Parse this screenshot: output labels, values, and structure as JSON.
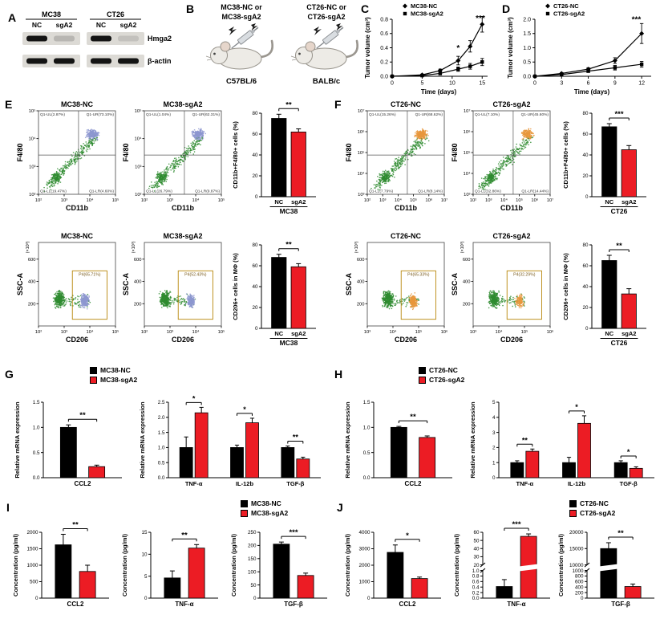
{
  "colors": {
    "nc": "#000000",
    "sg": "#ec1c24",
    "flow_main": "#2e8b2f",
    "flow_accent_blue": "#8d96d0",
    "flow_accent_orange": "#e8973c",
    "gate_box": "#b8860b"
  },
  "panel_letters": {
    "a": "A",
    "b": "B",
    "c": "C",
    "d": "D",
    "e": "E",
    "f": "F",
    "g": "G",
    "h": "H",
    "i": "I",
    "j": "J"
  },
  "panel_a": {
    "row_labels": [
      "Hmga2",
      "β-actin"
    ],
    "groups": [
      {
        "name": "MC38",
        "lanes": [
          "NC",
          "sgA2"
        ],
        "hmga2": [
          1.0,
          0.18
        ],
        "actin": [
          1.0,
          1.0
        ]
      },
      {
        "name": "CT26",
        "lanes": [
          "NC",
          "sgA2"
        ],
        "hmga2": [
          1.0,
          0.12
        ],
        "actin": [
          1.0,
          1.0
        ]
      }
    ]
  },
  "panel_b": {
    "arms": [
      {
        "line1": "MC38-NC or",
        "line2": "MC38-sgA2",
        "strain": "C57BL/6"
      },
      {
        "line1": "CT26-NC or",
        "line2": "CT26-sgA2",
        "strain": "BALB/c"
      }
    ]
  },
  "legends": {
    "g": [
      "MC38-NC",
      "MC38-sgA2"
    ],
    "h": [
      "CT26-NC",
      "CT26-sgA2"
    ],
    "i": [
      "MC38-NC",
      "MC38-sgA2"
    ],
    "j": [
      "CT26-NC",
      "CT26-sgA2"
    ]
  },
  "chart_data": [
    {
      "id": "C",
      "type": "line",
      "xlabel": "Time (days)",
      "ylabel": "Tumor volume (cm³)",
      "xlim": [
        0,
        15.5
      ],
      "ylim": [
        0,
        0.8
      ],
      "xticks": [
        0,
        5,
        10,
        15
      ],
      "yticks": [
        0,
        0.2,
        0.4,
        0.6,
        0.8
      ],
      "ytick_labels": [
        "0.0",
        "0.2",
        "0.4",
        "0.6",
        "0.8"
      ],
      "x": [
        0,
        5,
        8,
        11,
        13,
        15
      ],
      "series": [
        {
          "name": "MC38-NC",
          "marker": "diamond",
          "values": [
            0,
            0.02,
            0.08,
            0.22,
            0.42,
            0.73
          ],
          "errors": [
            0,
            0.01,
            0.02,
            0.06,
            0.08,
            0.11
          ]
        },
        {
          "name": "MC38-sgA2",
          "marker": "square",
          "values": [
            0,
            0.01,
            0.04,
            0.1,
            0.14,
            0.2
          ],
          "errors": [
            0,
            0.01,
            0.02,
            0.03,
            0.04,
            0.05
          ]
        }
      ],
      "annotations": [
        {
          "x": 11,
          "y": 0.36,
          "text": "*"
        },
        {
          "x": 14.7,
          "y": 0.78,
          "text": "***"
        }
      ]
    },
    {
      "id": "D",
      "type": "line",
      "xlabel": "Time (days)",
      "ylabel": "Tumor volume (cm³)",
      "xlim": [
        0,
        12.8
      ],
      "ylim": [
        0,
        2
      ],
      "xticks": [
        0,
        3,
        6,
        9,
        12
      ],
      "yticks": [
        0,
        0.5,
        1,
        1.5,
        2
      ],
      "ytick_labels": [
        "0.0",
        "0.5",
        "1.0",
        "1.5",
        "2.0"
      ],
      "x": [
        0,
        3,
        6,
        9,
        12
      ],
      "series": [
        {
          "name": "CT26-NC",
          "marker": "diamond",
          "values": [
            0,
            0.1,
            0.25,
            0.55,
            1.5
          ],
          "errors": [
            0,
            0.03,
            0.05,
            0.1,
            0.35
          ]
        },
        {
          "name": "CT26-sgA2",
          "marker": "square",
          "values": [
            0,
            0.06,
            0.18,
            0.3,
            0.42
          ],
          "errors": [
            0,
            0.02,
            0.04,
            0.08,
            0.1
          ]
        }
      ],
      "annotations": [
        {
          "x": 11.4,
          "y": 1.9,
          "text": "***"
        }
      ]
    },
    {
      "id": "E-flow-1",
      "type": "flow",
      "mode": "quad",
      "accent": "blue",
      "title": "MC38-NC",
      "xlabel": "CD11b",
      "ylabel": "F4/80",
      "xticks": [
        "10²",
        "10³",
        "10⁴",
        "10⁵"
      ],
      "yticks": [
        "10²",
        "10³",
        "10⁴",
        "10⁵"
      ],
      "quads": {
        "ul": "Q1-UL(2.87%)",
        "ur": "Q1-UR(73.10%)",
        "ll": "Q1-LL(19.47%)",
        "lr": "Q1-LR(4.60%)"
      }
    },
    {
      "id": "E-flow-2",
      "type": "flow",
      "mode": "quad",
      "accent": "blue",
      "title": "MC38-sgA2",
      "xlabel": "CD11b",
      "ylabel": "F4/80",
      "xticks": [
        "10²",
        "10³",
        "10⁴",
        "10⁵"
      ],
      "yticks": [
        "10²",
        "10³",
        "10⁴",
        "10⁵"
      ],
      "quads": {
        "ul": "Q1-UL(1.04%)",
        "ur": "Q1-UR(62.31%)",
        "ll": "Q1-LL(26.79%)",
        "lr": "Q1-LR(9.87%)"
      }
    },
    {
      "id": "E-bar-1",
      "type": "pairbar",
      "ylabel": "CD11b+F4/80+ cells (%)",
      "ylim": [
        0,
        80
      ],
      "yticks": [
        0,
        20,
        40,
        60,
        80
      ],
      "bars": [
        {
          "label": "NC",
          "value": 75,
          "error": 4,
          "color": "nc"
        },
        {
          "label": "sgA2",
          "value": 62,
          "error": 3,
          "color": "sg"
        }
      ],
      "sig": "**",
      "group_label": "MC38"
    },
    {
      "id": "E-flow-3",
      "type": "flow",
      "mode": "gate",
      "accent": "blue",
      "title": "MC38-NC",
      "xlabel": "CD206",
      "ylabel": "SSC-A",
      "y_unit": "(×10³)",
      "xticks": [
        "10²",
        "10³",
        "10⁴",
        "10⁵"
      ],
      "yticks": [
        200,
        400,
        600
      ],
      "gate": "P4(65.71%)"
    },
    {
      "id": "E-flow-4",
      "type": "flow",
      "mode": "gate",
      "accent": "blue",
      "title": "MC38-sgA2",
      "xlabel": "CD206",
      "ylabel": "SSC-A",
      "y_unit": "(×10³)",
      "xticks": [
        "10²",
        "10³",
        "10⁴",
        "10⁵"
      ],
      "yticks": [
        200,
        400,
        600
      ],
      "gate": "P4(52.43%)"
    },
    {
      "id": "E-bar-2",
      "type": "pairbar",
      "ylabel": "CD206+ cells in MΦ (%)",
      "ylim": [
        0,
        80
      ],
      "yticks": [
        0,
        20,
        40,
        60,
        80
      ],
      "bars": [
        {
          "label": "NC",
          "value": 68,
          "error": 3,
          "color": "nc"
        },
        {
          "label": "sgA2",
          "value": 59,
          "error": 3,
          "color": "sg"
        }
      ],
      "sig": "**",
      "group_label": "MC38"
    },
    {
      "id": "F-flow-1",
      "type": "flow",
      "mode": "quad",
      "accent": "orange",
      "title": "CT26-NC",
      "xlabel": "CD11b",
      "ylabel": "F4/80",
      "xticks": [
        "10²",
        "10³",
        "10⁴",
        "10⁵",
        "10⁶",
        "10⁷"
      ],
      "yticks": [
        "10³",
        "10⁴",
        "10⁵",
        "10⁶",
        "10⁷"
      ],
      "quads": {
        "ul": "Q1-UL(15.26%)",
        "ur": "Q1-UR(68.62%)",
        "ll": "Q1-LL(7.79%)",
        "lr": "Q1-LR(8.14%)"
      }
    },
    {
      "id": "F-flow-2",
      "type": "flow",
      "mode": "quad",
      "accent": "orange",
      "title": "CT26-sgA2",
      "xlabel": "CD11b",
      "ylabel": "F4/80",
      "xticks": [
        "10²",
        "10³",
        "10⁴",
        "10⁵",
        "10⁶",
        "10⁷"
      ],
      "yticks": [
        "10³",
        "10⁴",
        "10⁵",
        "10⁶",
        "10⁷"
      ],
      "quads": {
        "ul": "Q1-UL(7.10%)",
        "ur": "Q1-UR(45.60%)",
        "ll": "Q1-LL(32.86%)",
        "lr": "Q1-LR(14.44%)"
      }
    },
    {
      "id": "F-bar-1",
      "type": "pairbar",
      "ylabel": "CD11b+F4/80+ cells (%)",
      "ylim": [
        0,
        80
      ],
      "yticks": [
        0,
        20,
        40,
        60,
        80
      ],
      "bars": [
        {
          "label": "NC",
          "value": 67,
          "error": 3,
          "color": "nc"
        },
        {
          "label": "sgA2",
          "value": 45,
          "error": 4,
          "color": "sg"
        }
      ],
      "sig": "***",
      "group_label": "CT26"
    },
    {
      "id": "F-flow-3",
      "type": "flow",
      "mode": "gate",
      "accent": "orange",
      "title": "CT26-NC",
      "xlabel": "CD206",
      "ylabel": "SSC-A",
      "y_unit": "(×10³)",
      "xticks": [
        "10³",
        "10⁴",
        "10⁵",
        "10⁶"
      ],
      "yticks": [
        200,
        400,
        600
      ],
      "gate": "P4(65.33%)"
    },
    {
      "id": "F-flow-4",
      "type": "flow",
      "mode": "gate",
      "accent": "orange",
      "title": "CT26-sgA2",
      "xlabel": "CD206",
      "ylabel": "SSC-A",
      "y_unit": "(×10³)",
      "xticks": [
        "10³",
        "10⁴",
        "10⁵",
        "10⁶"
      ],
      "yticks": [
        200,
        400,
        600
      ],
      "gate": "P4(32.29%)"
    },
    {
      "id": "F-bar-2",
      "type": "pairbar",
      "ylabel": "CD206+ cells in MΦ (%)",
      "ylim": [
        0,
        80
      ],
      "yticks": [
        0,
        20,
        40,
        60,
        80
      ],
      "bars": [
        {
          "label": "NC",
          "value": 65,
          "error": 5,
          "color": "nc"
        },
        {
          "label": "sgA2",
          "value": 33,
          "error": 5,
          "color": "sg"
        }
      ],
      "sig": "**",
      "group_label": "CT26"
    },
    {
      "id": "G-ccl2",
      "type": "pairbar",
      "ylabel": "Relative mRNA expression",
      "ylim": [
        0,
        1.5
      ],
      "yticks": [
        0,
        0.5,
        1,
        1.5
      ],
      "ytick_labels": [
        "0.0",
        "0.5",
        "1.0",
        "1.5"
      ],
      "bars": [
        {
          "value": 1.0,
          "error": 0.05,
          "color": "nc"
        },
        {
          "value": 0.22,
          "error": 0.03,
          "color": "sg"
        }
      ],
      "sig": "**",
      "group_label": "CCL2"
    },
    {
      "id": "G-cyt",
      "type": "groupbar",
      "ylabel": "Relative mRNA expression",
      "ylim": [
        0,
        2.5
      ],
      "yticks": [
        0,
        0.5,
        1,
        1.5,
        2,
        2.5
      ],
      "ytick_labels": [
        "0.0",
        "0.5",
        "1.0",
        "1.5",
        "2.0",
        "2.5"
      ],
      "categories": [
        "TNF-α",
        "IL-12b",
        "TGF-β"
      ],
      "series": [
        {
          "color": "nc",
          "values": [
            1.0,
            1.0,
            1.0
          ],
          "errors": [
            0.35,
            0.08,
            0.05
          ]
        },
        {
          "color": "sg",
          "values": [
            2.15,
            1.82,
            0.62
          ],
          "errors": [
            0.18,
            0.15,
            0.06
          ]
        }
      ],
      "sigs": [
        "*",
        "*",
        "**"
      ]
    },
    {
      "id": "H-ccl2",
      "type": "pairbar",
      "ylabel": "Relative mRNA expression",
      "ylim": [
        0,
        1.5
      ],
      "yticks": [
        0,
        0.5,
        1,
        1.5
      ],
      "ytick_labels": [
        "0.0",
        "0.5",
        "1.0",
        "1.5"
      ],
      "bars": [
        {
          "value": 1.0,
          "error": 0.02,
          "color": "nc"
        },
        {
          "value": 0.8,
          "error": 0.03,
          "color": "sg"
        }
      ],
      "sig": "**",
      "group_label": "CCL2"
    },
    {
      "id": "H-cyt",
      "type": "groupbar",
      "ylabel": "Relative mRNA expression",
      "ylim": [
        0,
        5
      ],
      "yticks": [
        0,
        1,
        2,
        3,
        4,
        5
      ],
      "categories": [
        "TNF-α",
        "IL-12b",
        "TGF-β"
      ],
      "series": [
        {
          "color": "nc",
          "values": [
            1.0,
            1.0,
            1.0
          ],
          "errors": [
            0.12,
            0.35,
            0.12
          ]
        },
        {
          "color": "sg",
          "values": [
            1.75,
            3.6,
            0.62
          ],
          "errors": [
            0.15,
            0.5,
            0.1
          ]
        }
      ],
      "sigs": [
        "**",
        "*",
        "*"
      ]
    },
    {
      "id": "I-ccl2",
      "type": "pairbar",
      "ylabel": "Concentration (pg/ml)",
      "ylim": [
        0,
        2000
      ],
      "yticks": [
        0,
        500,
        1000,
        1500,
        2000
      ],
      "bars": [
        {
          "value": 1620,
          "error": 320,
          "color": "nc"
        },
        {
          "value": 810,
          "error": 190,
          "color": "sg"
        }
      ],
      "sig": "**",
      "group_label": "CCL2"
    },
    {
      "id": "I-tnf",
      "type": "pairbar",
      "ylabel": "Concentration (pg/ml)",
      "ylim": [
        0,
        15
      ],
      "yticks": [
        0,
        5,
        10,
        15
      ],
      "bars": [
        {
          "value": 4.6,
          "error": 1.6,
          "color": "nc"
        },
        {
          "value": 11.4,
          "error": 0.8,
          "color": "sg"
        }
      ],
      "sig": "**",
      "group_label": "TNF-α"
    },
    {
      "id": "I-tgf",
      "type": "pairbar",
      "ylabel": "Concentration (pg/ml)",
      "ylim": [
        0,
        250
      ],
      "yticks": [
        0,
        50,
        100,
        150,
        200,
        250
      ],
      "bars": [
        {
          "value": 205,
          "error": 8,
          "color": "nc"
        },
        {
          "value": 86,
          "error": 9,
          "color": "sg"
        }
      ],
      "sig": "***",
      "group_label": "TGF-β"
    },
    {
      "id": "J-ccl2",
      "type": "pairbar",
      "ylabel": "Concentration (pg/ml)",
      "ylim": [
        0,
        4000
      ],
      "yticks": [
        0,
        1000,
        2000,
        3000,
        4000
      ],
      "bars": [
        {
          "value": 2780,
          "error": 450,
          "color": "nc"
        },
        {
          "value": 1190,
          "error": 90,
          "color": "sg"
        }
      ],
      "sig": "*",
      "group_label": "CCL2"
    },
    {
      "id": "J-tnf",
      "type": "pairbar",
      "ylabel": "Concentration (pg/ml)",
      "broken": {
        "lower_max": 1.0,
        "lower_ticks": [
          0,
          0.2,
          0.4,
          0.6,
          0.8,
          1.0
        ],
        "lower_tick_labels": [
          "0.0",
          "0.2",
          "0.4",
          "0.6",
          "0.8",
          "1.0"
        ],
        "upper_min": 20,
        "upper_max": 60,
        "upper_ticks": [
          20,
          30,
          40,
          50,
          60
        ]
      },
      "bars": [
        {
          "value": 0.42,
          "error": 0.25,
          "color": "nc"
        },
        {
          "value": 55,
          "error": 3,
          "color": "sg"
        }
      ],
      "sig": "***",
      "group_label": "TNF-α"
    },
    {
      "id": "J-tgf",
      "type": "pairbar",
      "ylabel": "Concentration (pg/ml)",
      "broken": {
        "lower_max": 1000,
        "lower_ticks": [
          0,
          200,
          400,
          600,
          800,
          1000
        ],
        "upper_min": 10000,
        "upper_max": 20000,
        "upper_ticks": [
          10000,
          15000,
          20000
        ]
      },
      "bars": [
        {
          "value": 15000,
          "error": 1800,
          "color": "nc"
        },
        {
          "value": 420,
          "error": 90,
          "color": "sg"
        }
      ],
      "sig": "**",
      "group_label": "TGF-β"
    }
  ]
}
